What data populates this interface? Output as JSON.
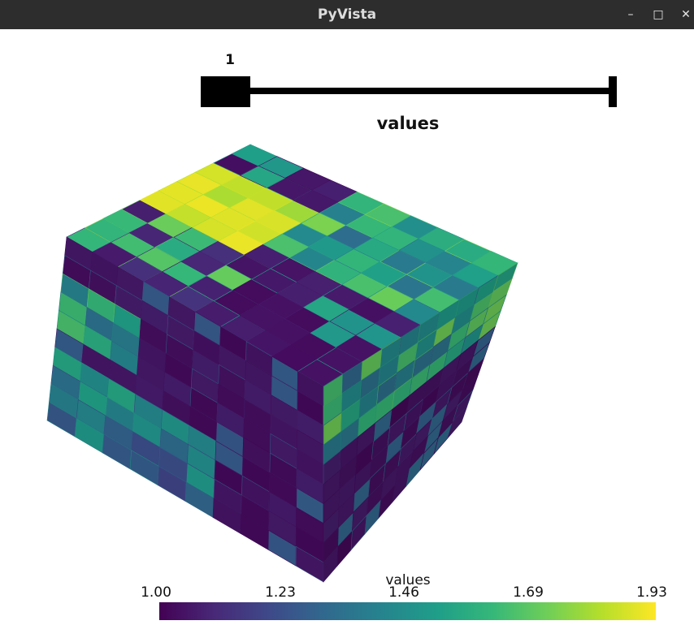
{
  "window": {
    "title": "PyVista",
    "minimize_icon": "minimize-icon",
    "maximize_icon": "maximize-icon",
    "close_icon": "close-icon"
  },
  "slider": {
    "value": "1",
    "title": "values",
    "level": 0
  },
  "scalar_bar": {
    "title": "values",
    "ticks": [
      "1.00",
      "1.23",
      "1.46",
      "1.69",
      "1.93"
    ],
    "range": [
      1.0,
      1.93
    ],
    "colormap": [
      "#440154",
      "#482878",
      "#3e4989",
      "#31688e",
      "#26828e",
      "#1f9e89",
      "#35b779",
      "#6ece58",
      "#b5de2b",
      "#fde725"
    ]
  },
  "mesh": {
    "description_colormap": "viridis"
  }
}
